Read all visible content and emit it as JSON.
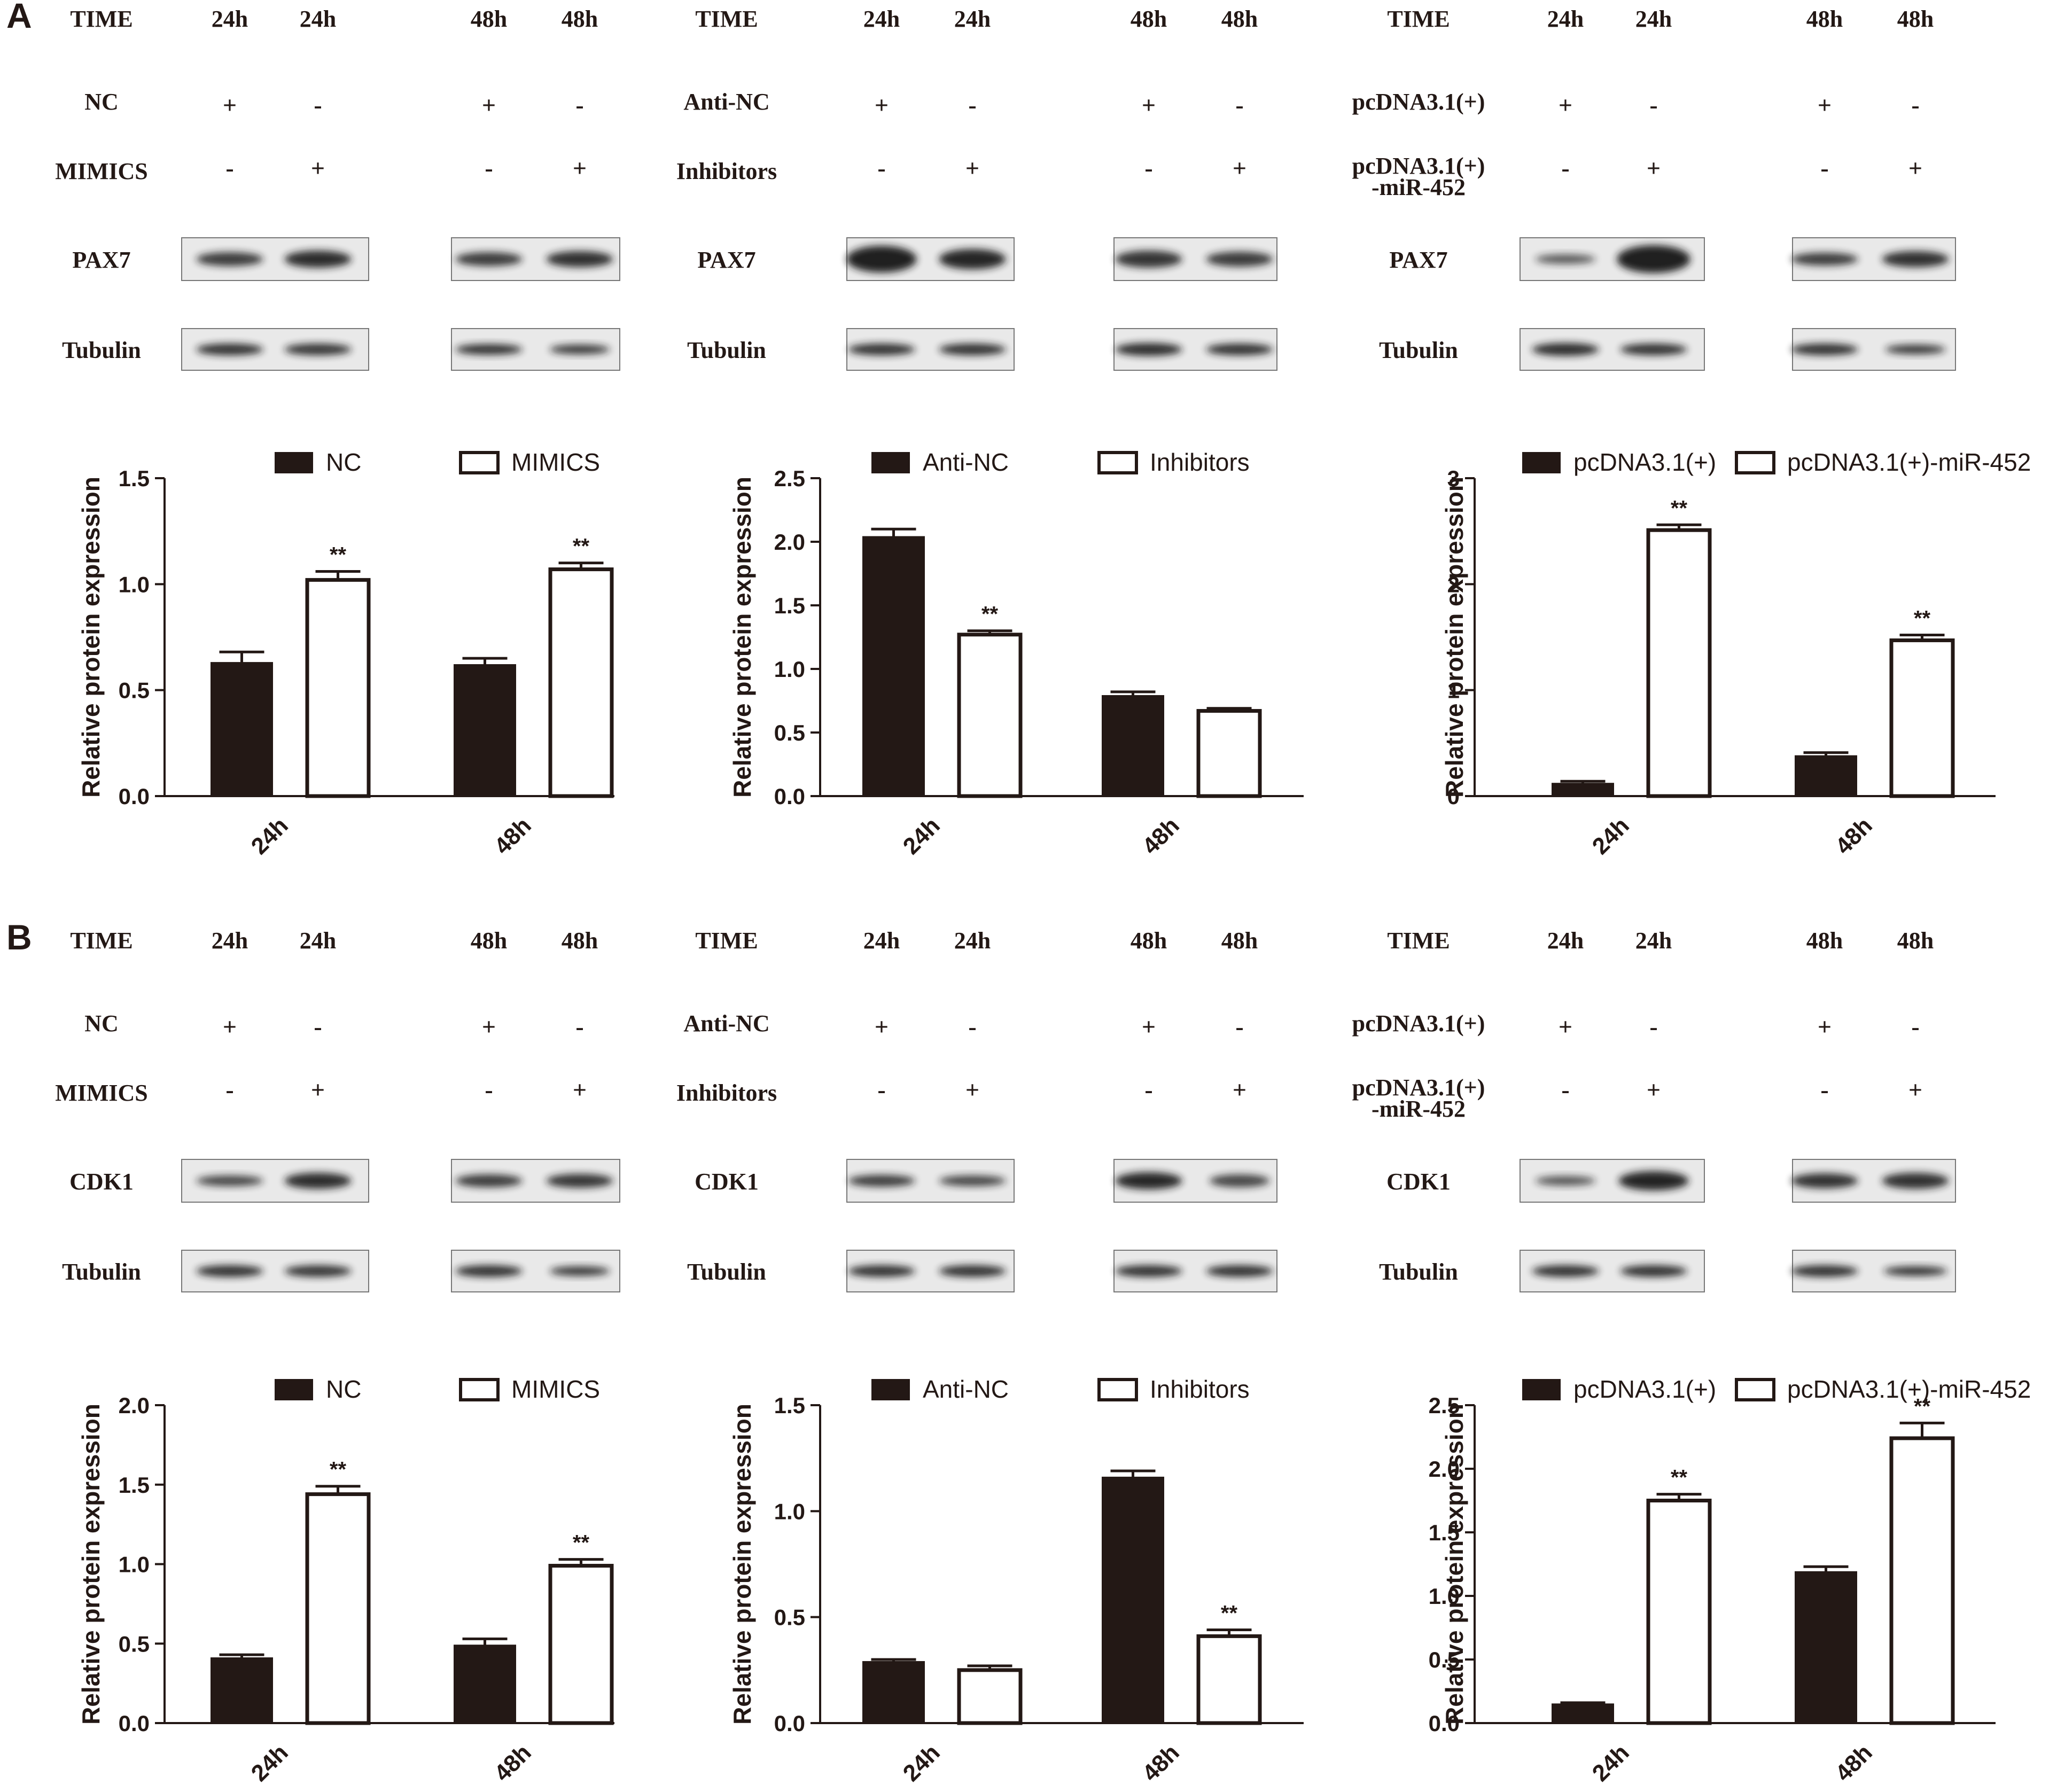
{
  "colors": {
    "dark_bar": "#231815",
    "light_bar": "#ffffff",
    "ink": "#231815"
  },
  "panels": [
    {
      "letter": "A",
      "protein": "PAX7",
      "loading": "Tubulin",
      "time_label": "TIME",
      "blots": [
        {
          "row1": "NC",
          "row2": "MIMICS",
          "row2b": "",
          "times": [
            "24h",
            "24h",
            "48h",
            "48h"
          ],
          "row1_signs": [
            "+",
            "-",
            "+",
            "-"
          ],
          "row2_signs": [
            "-",
            "+",
            "-",
            "+"
          ]
        },
        {
          "row1": "Anti-NC",
          "row2": "Inhibitors",
          "row2b": "",
          "times": [
            "24h",
            "24h",
            "48h",
            "48h"
          ],
          "row1_signs": [
            "+",
            "-",
            "+",
            "-"
          ],
          "row2_signs": [
            "-",
            "+",
            "-",
            "+"
          ]
        },
        {
          "row1": "pcDNA3.1(+)",
          "row2": "pcDNA3.1(+)",
          "row2b": "-miR-452",
          "times": [
            "24h",
            "24h",
            "48h",
            "48h"
          ],
          "row1_signs": [
            "+",
            "-",
            "+",
            "-"
          ],
          "row2_signs": [
            "-",
            "+",
            "-",
            "+"
          ]
        }
      ]
    },
    {
      "letter": "B",
      "protein": "CDK1",
      "loading": "Tubulin",
      "time_label": "TIME",
      "blots": [
        {
          "row1": "NC",
          "row2": "MIMICS",
          "row2b": "",
          "times": [
            "24h",
            "24h",
            "48h",
            "48h"
          ],
          "row1_signs": [
            "+",
            "-",
            "+",
            "-"
          ],
          "row2_signs": [
            "-",
            "+",
            "-",
            "+"
          ]
        },
        {
          "row1": "Anti-NC",
          "row2": "Inhibitors",
          "row2b": "",
          "times": [
            "24h",
            "24h",
            "48h",
            "48h"
          ],
          "row1_signs": [
            "+",
            "-",
            "+",
            "-"
          ],
          "row2_signs": [
            "-",
            "+",
            "-",
            "+"
          ]
        },
        {
          "row1": "pcDNA3.1(+)",
          "row2": "pcDNA3.1(+)",
          "row2b": "-miR-452",
          "times": [
            "24h",
            "24h",
            "48h",
            "48h"
          ],
          "row1_signs": [
            "+",
            "-",
            "+",
            "-"
          ],
          "row2_signs": [
            "-",
            "+",
            "-",
            "+"
          ]
        }
      ]
    }
  ],
  "chart_data": [
    {
      "panel": "A",
      "type": "bar",
      "categories": [
        "24h",
        "48h"
      ],
      "ylabel": "Relative protein expression",
      "ylim": [
        0,
        1.5
      ],
      "yticks": [
        "0.0",
        "0.5",
        "1.0",
        "1.5"
      ],
      "series": [
        {
          "name": "NC",
          "values": [
            0.63,
            0.62
          ],
          "errors": [
            0.05,
            0.03
          ]
        },
        {
          "name": "MIMICS",
          "values": [
            1.02,
            1.07
          ],
          "errors": [
            0.04,
            0.03
          ]
        }
      ],
      "significance": [
        "**",
        "**"
      ],
      "legend": "top"
    },
    {
      "panel": "A",
      "type": "bar",
      "categories": [
        "24h",
        "48h"
      ],
      "ylabel": "Relative  protein expression",
      "ylim": [
        0,
        2.5
      ],
      "yticks": [
        "0.0",
        "0.5",
        "1.0",
        "1.5",
        "2.0",
        "2.5"
      ],
      "series": [
        {
          "name": "Anti-NC",
          "values": [
            2.04,
            0.79
          ],
          "errors": [
            0.06,
            0.03
          ]
        },
        {
          "name": "Inhibitors",
          "values": [
            1.27,
            0.67
          ],
          "errors": [
            0.03,
            0.02
          ]
        }
      ],
      "significance": [
        "**",
        ""
      ],
      "legend": "top"
    },
    {
      "panel": "A",
      "type": "bar",
      "categories": [
        "24h",
        "48h"
      ],
      "ylabel": "Relative  protein expression",
      "ylim": [
        0,
        3
      ],
      "yticks": [
        "0",
        "1",
        "2",
        "3"
      ],
      "series": [
        {
          "name": "pcDNA3.1(+)",
          "values": [
            0.12,
            0.38
          ],
          "errors": [
            0.02,
            0.03
          ]
        },
        {
          "name": "pcDNA3.1(+)-miR-452",
          "values": [
            2.51,
            1.47
          ],
          "errors": [
            0.05,
            0.05
          ]
        }
      ],
      "significance": [
        "**",
        "**"
      ],
      "legend": "top"
    },
    {
      "panel": "B",
      "type": "bar",
      "categories": [
        "24h",
        "48h"
      ],
      "ylabel": "Relative protein expression",
      "ylim": [
        0,
        2.0
      ],
      "yticks": [
        "0.0",
        "0.5",
        "1.0",
        "1.5",
        "2.0"
      ],
      "series": [
        {
          "name": "NC",
          "values": [
            0.41,
            0.49
          ],
          "errors": [
            0.02,
            0.04
          ]
        },
        {
          "name": "MIMICS",
          "values": [
            1.44,
            0.99
          ],
          "errors": [
            0.05,
            0.04
          ]
        }
      ],
      "significance": [
        "**",
        "**"
      ],
      "legend": "top"
    },
    {
      "panel": "B",
      "type": "bar",
      "categories": [
        "24h",
        "48h"
      ],
      "ylabel": "Relative protein expression",
      "ylim": [
        0,
        1.5
      ],
      "yticks": [
        "0.0",
        "0.5",
        "1.0",
        "1.5"
      ],
      "series": [
        {
          "name": "Anti-NC",
          "values": [
            0.29,
            1.16
          ],
          "errors": [
            0.01,
            0.03
          ]
        },
        {
          "name": "Inhibitors",
          "values": [
            0.25,
            0.41
          ],
          "errors": [
            0.02,
            0.03
          ]
        }
      ],
      "significance": [
        "",
        "**"
      ],
      "legend": "top"
    },
    {
      "panel": "B",
      "type": "bar",
      "categories": [
        "24h",
        "48h"
      ],
      "ylabel": "Relative protein expression",
      "ylim": [
        0,
        2.5
      ],
      "yticks": [
        "0.0",
        "0.5",
        "1.0",
        "1.5",
        "2.0",
        "2.5"
      ],
      "series": [
        {
          "name": "pcDNA3.1(+)",
          "values": [
            0.15,
            1.19
          ],
          "errors": [
            0.01,
            0.04
          ]
        },
        {
          "name": "pcDNA3.1(+)-miR-452",
          "values": [
            1.75,
            2.24
          ],
          "errors": [
            0.05,
            0.12
          ]
        }
      ],
      "significance": [
        "**",
        "**"
      ],
      "legend": "top"
    }
  ]
}
